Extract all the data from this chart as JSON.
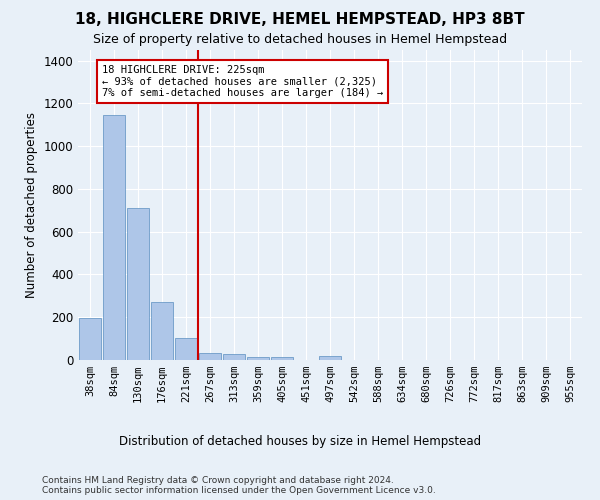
{
  "title": "18, HIGHCLERE DRIVE, HEMEL HEMPSTEAD, HP3 8BT",
  "subtitle": "Size of property relative to detached houses in Hemel Hempstead",
  "xlabel": "Distribution of detached houses by size in Hemel Hempstead",
  "ylabel": "Number of detached properties",
  "categories": [
    "38sqm",
    "84sqm",
    "130sqm",
    "176sqm",
    "221sqm",
    "267sqm",
    "313sqm",
    "359sqm",
    "405sqm",
    "451sqm",
    "497sqm",
    "542sqm",
    "588sqm",
    "634sqm",
    "680sqm",
    "726sqm",
    "772sqm",
    "817sqm",
    "863sqm",
    "909sqm",
    "955sqm"
  ],
  "values": [
    195,
    1145,
    710,
    270,
    105,
    35,
    28,
    13,
    15,
    0,
    18,
    0,
    0,
    0,
    0,
    0,
    0,
    0,
    0,
    0,
    0
  ],
  "bar_color": "#aec6e8",
  "bar_edge_color": "#5a8fc0",
  "vline_x": 4.5,
  "vline_color": "#cc0000",
  "annotation_text": "18 HIGHCLERE DRIVE: 225sqm\n← 93% of detached houses are smaller (2,325)\n7% of semi-detached houses are larger (184) →",
  "annotation_box_color": "#cc0000",
  "annotation_box_facecolor": "white",
  "background_color": "#e8f0f8",
  "grid_color": "#ffffff",
  "ylim": [
    0,
    1450
  ],
  "footer": "Contains HM Land Registry data © Crown copyright and database right 2024.\nContains public sector information licensed under the Open Government Licence v3.0."
}
